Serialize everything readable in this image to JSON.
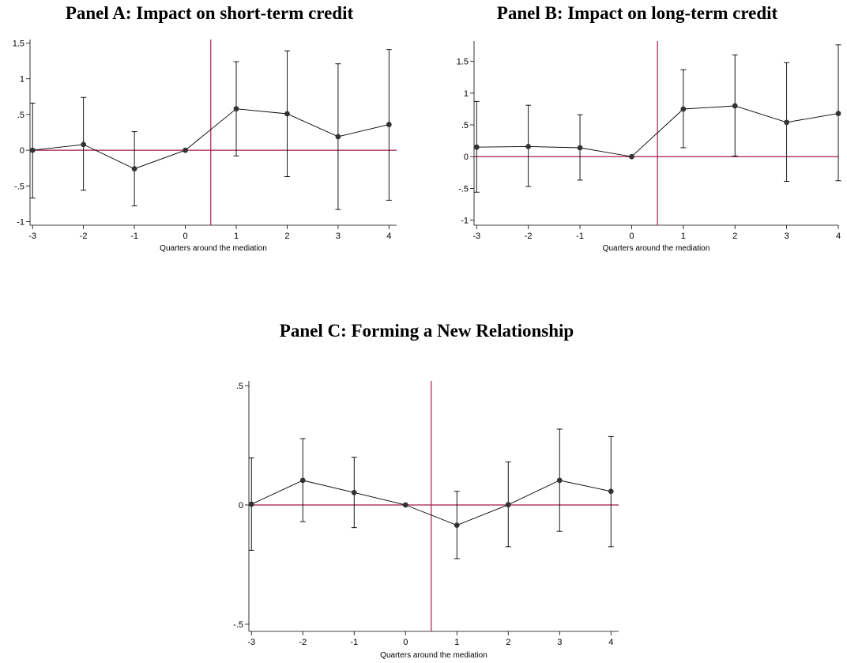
{
  "chart_data": [
    {
      "type": "line",
      "title": "Panel A: Impact on short-term credit",
      "xlabel": "Quarters around the mediation",
      "ylabel": "",
      "x": [
        -3,
        -2,
        -1,
        0,
        1,
        2,
        3,
        4
      ],
      "xticks": [
        "-3",
        "-2",
        "-1",
        "0",
        "1",
        "2",
        "3",
        "4"
      ],
      "yticks": [
        "-1",
        "-.5",
        "0",
        ".5",
        "1",
        "1.5"
      ],
      "ylim": [
        -1.05,
        1.55
      ],
      "xlim": [
        -3.05,
        4.15
      ],
      "reference_lines": {
        "y": 0,
        "x": 0.5
      },
      "series": [
        {
          "values": [
            0,
            0.08,
            -0.26,
            0,
            0.58,
            0.51,
            0.19,
            0.36
          ],
          "ci_low": [
            -0.67,
            -0.56,
            -0.78,
            0,
            -0.08,
            -0.37,
            -0.83,
            -0.7
          ],
          "ci_high": [
            0.66,
            0.74,
            0.26,
            0,
            1.24,
            1.39,
            1.21,
            1.41
          ]
        }
      ],
      "grid": false,
      "colors": {
        "line": "#000000",
        "marker": "#333333",
        "reference": "#a6194a"
      }
    },
    {
      "type": "line",
      "title": "Panel B: Impact on long-term credit",
      "xlabel": "Quarters around the mediation",
      "ylabel": "",
      "x": [
        -3,
        -2,
        -1,
        0,
        1,
        2,
        3,
        4
      ],
      "xticks": [
        "-3",
        "-2",
        "-1",
        "0",
        "1",
        "2",
        "3",
        "4"
      ],
      "yticks": [
        "-1",
        "-.5",
        "0",
        ".5",
        "1",
        "1.5"
      ],
      "ylim": [
        -1.08,
        1.82
      ],
      "xlim": [
        -3.05,
        4.0
      ],
      "reference_lines": {
        "y": 0,
        "x": 0.5
      },
      "series": [
        {
          "values": [
            0.15,
            0.16,
            0.14,
            0,
            0.75,
            0.8,
            0.54,
            0.68
          ],
          "ci_low": [
            -0.56,
            -0.47,
            -0.37,
            0,
            0.14,
            0.01,
            -0.39,
            -0.38
          ],
          "ci_high": [
            0.87,
            0.81,
            0.66,
            0,
            1.37,
            1.6,
            1.48,
            1.76
          ]
        }
      ],
      "grid": false,
      "colors": {
        "line": "#000000",
        "marker": "#333333",
        "reference": "#a6194a"
      }
    },
    {
      "type": "line",
      "title": "Panel C: Forming a New Relationship",
      "xlabel": "Quarters around the mediation",
      "ylabel": "",
      "x": [
        -3,
        -2,
        -1,
        0,
        1,
        2,
        3,
        4
      ],
      "xticks": [
        "-3",
        "-2",
        "-1",
        "0",
        "1",
        "2",
        "3",
        "4"
      ],
      "yticks": [
        "-.5",
        "0",
        ".5"
      ],
      "ylim": [
        -0.53,
        0.52
      ],
      "xlim": [
        -3.05,
        4.15
      ],
      "reference_lines": {
        "y": 0,
        "x": 0.5
      },
      "series": [
        {
          "values": [
            0.003,
            0.103,
            0.052,
            0,
            -0.085,
            0.001,
            0.103,
            0.057
          ],
          "ci_low": [
            -0.19,
            -0.07,
            -0.095,
            0,
            -0.225,
            -0.175,
            -0.11,
            -0.175
          ],
          "ci_high": [
            0.197,
            0.278,
            0.2,
            0,
            0.057,
            0.18,
            0.318,
            0.287
          ]
        }
      ],
      "grid": false,
      "colors": {
        "line": "#000000",
        "marker": "#333333",
        "reference": "#a6194a"
      }
    }
  ]
}
